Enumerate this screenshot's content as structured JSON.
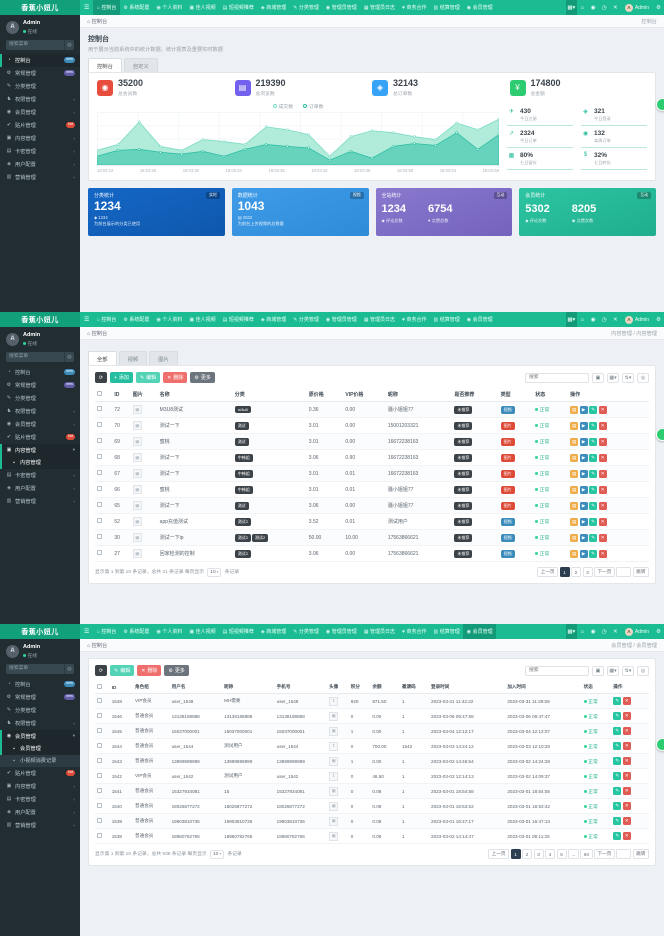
{
  "brand": "香蕉小妞儿",
  "navbar": {
    "items": [
      {
        "glyph": "⌂",
        "icon": "home",
        "label": "控制台"
      },
      {
        "glyph": "⚙",
        "icon": "gear",
        "label": "系统配置"
      },
      {
        "glyph": "◉",
        "icon": "user",
        "label": "个人资料"
      },
      {
        "glyph": "▣",
        "icon": "film",
        "label": "佳人视频"
      },
      {
        "glyph": "▤",
        "icon": "video-list",
        "label": "短视频推荐"
      },
      {
        "glyph": "◈",
        "icon": "mall",
        "label": "商城管理"
      },
      {
        "glyph": "✎",
        "icon": "category",
        "label": "分类管理"
      },
      {
        "glyph": "◉",
        "icon": "admin",
        "label": "管理员管理"
      },
      {
        "glyph": "▦",
        "icon": "log",
        "label": "管理员日志"
      },
      {
        "glyph": "♥",
        "icon": "business",
        "label": "商务合作"
      },
      {
        "glyph": "▥",
        "icon": "settle",
        "label": "结算管理"
      },
      {
        "glyph": "◉",
        "icon": "member",
        "label": "会员管理"
      }
    ],
    "right_icons": [
      {
        "glyph": "▦▾",
        "name": "apps-menu-icon",
        "boxed": true
      },
      {
        "glyph": "⌂",
        "name": "home-icon"
      },
      {
        "glyph": "◉",
        "name": "profile-icon"
      },
      {
        "glyph": "◷",
        "name": "history-icon"
      },
      {
        "glyph": "✕",
        "name": "close-tab-icon"
      }
    ],
    "user": "Admin",
    "settings_glyph": "⚙"
  },
  "sidebar": {
    "user_name": "Admin",
    "user_status": "在线",
    "search_placeholder": "搜索菜单",
    "items": [
      {
        "glyph": "◔",
        "icon": "dashboard",
        "label": "控制台",
        "badge": "new",
        "badge_color": "#3c8dbc"
      },
      {
        "glyph": "⚙",
        "icon": "general",
        "label": "常规管理",
        "badge": "new",
        "badge_color": "#605ca8"
      },
      {
        "glyph": "✎",
        "icon": "category",
        "label": "分类管理"
      },
      {
        "glyph": "♞",
        "icon": "auth",
        "label": "权限管理",
        "arrow": true
      },
      {
        "glyph": "◉",
        "icon": "members",
        "label": "会员管理",
        "arrow": true,
        "children": [
          "会员管理",
          "小视频消费记录"
        ]
      },
      {
        "glyph": "✔",
        "icon": "paster",
        "label": "贴片管理",
        "badge": "hot",
        "badge_color": "#dd4b39"
      },
      {
        "glyph": "▣",
        "icon": "content",
        "label": "内容管理",
        "arrow": true,
        "children": [
          "内容管理"
        ]
      },
      {
        "glyph": "▤",
        "icon": "cardkey",
        "label": "卡密管理",
        "arrow": true
      },
      {
        "glyph": "◈",
        "icon": "userconf",
        "label": "用户配置",
        "arrow": true
      },
      {
        "glyph": "▥",
        "icon": "marketing",
        "label": "营销管理",
        "arrow": true
      }
    ]
  },
  "panels": [
    {
      "key": "dashboard",
      "nav_active": 0,
      "crumb": "控制台",
      "crumb_right": "控制台",
      "sidebar_active": 0,
      "expanded": -1,
      "active_child": -1
    },
    {
      "key": "content",
      "nav_active": -1,
      "crumb": "控制台",
      "crumb_right": "内容管理 / 内容管理",
      "sidebar_active": -1,
      "expanded": 6,
      "active_child": 0
    },
    {
      "key": "members",
      "nav_active": 11,
      "crumb": "控制台",
      "crumb_right": "会员管理 / 会员管理",
      "sidebar_active": -1,
      "expanded": 4,
      "active_child": 0
    }
  ],
  "dashboard": {
    "title": "控制台",
    "subtitle": "用于展示当前系统中的统计数据，统计报表及重要实时数据",
    "tabs": [
      "控制台",
      "自定义"
    ],
    "stats": [
      {
        "value": "35200",
        "label": "总会员数",
        "color": "#e74c3c",
        "glyph": "◉",
        "icon": "users"
      },
      {
        "value": "219390",
        "label": "总浏览数",
        "color": "#7460ee",
        "glyph": "▤",
        "icon": "views"
      },
      {
        "value": "32143",
        "label": "总订单数",
        "color": "#36a3f7",
        "glyph": "◈",
        "icon": "orders"
      },
      {
        "value": "174800",
        "label": "总金额",
        "color": "#2ecc71",
        "glyph": "¥",
        "icon": "money"
      }
    ],
    "minis": [
      {
        "value": "430",
        "label": "今日注册",
        "glyph": "✈",
        "icon": "register"
      },
      {
        "value": "2324",
        "label": "今日订单",
        "glyph": "↗",
        "icon": "orders-today"
      },
      {
        "value": "80%",
        "label": "七日留存",
        "glyph": "▦",
        "icon": "retention"
      },
      {
        "value": "321",
        "label": "今日登录",
        "glyph": "◈",
        "icon": "login-today"
      },
      {
        "value": "132",
        "label": "本周订单",
        "glyph": "◉",
        "icon": "week-orders"
      },
      {
        "value": "32%",
        "label": "七日转化",
        "glyph": "$",
        "icon": "conversion"
      }
    ],
    "cards": [
      {
        "title": "分类统计",
        "badge": "实时",
        "value": "1234",
        "foot_icon": "◆",
        "foot1": "1234",
        "foot2": "为前台展示的分类已使用",
        "bg1": "#1467c6",
        "bg2": "#0f57ad"
      },
      {
        "title": "数据统计",
        "badge": "视频",
        "value": "1043",
        "foot_icon": "▤",
        "foot1": "2532",
        "foot2": "为前台上传视频的总数量",
        "bg1": "#3f9ce8",
        "bg2": "#2e8bd8"
      },
      {
        "title": "全站统计",
        "badge": "互动",
        "pairs": [
          {
            "glyph": "◆",
            "value": "1234",
            "label": "评论总数"
          },
          {
            "glyph": "♥",
            "value": "6754",
            "label": "点赞总数"
          }
        ],
        "bg1": "#8a79ce",
        "bg2": "#7462bd"
      },
      {
        "title": "会员统计",
        "badge": "互动",
        "pairs": [
          {
            "glyph": "◆",
            "value": "5302",
            "label": "评论次数"
          },
          {
            "glyph": "◉",
            "value": "8205",
            "label": "点赞次数"
          }
        ],
        "bg1": "#2dc5a2",
        "bg2": "#1fae8d"
      }
    ]
  },
  "chart_data": {
    "type": "area",
    "title": "",
    "x": [
      "18:03:22",
      "18:03:26",
      "18:03:30",
      "18:03:34",
      "18:03:38",
      "18:03:42",
      "18:03:46",
      "18:03:50",
      "18:03:54",
      "18:03:58"
    ],
    "series": [
      {
        "name": "成交数",
        "color": "#7bdcc4",
        "fill": "#a9e9d6",
        "values": [
          30,
          42,
          88,
          38,
          30,
          52,
          48,
          42,
          78,
          72,
          62,
          18,
          58,
          70,
          66,
          58,
          52,
          86,
          72,
          94
        ]
      },
      {
        "name": "订单数",
        "color": "#2fbfa3",
        "fill": "#5fd0b8",
        "values": [
          18,
          30,
          32,
          26,
          22,
          28,
          18,
          32,
          42,
          38,
          35,
          10,
          28,
          14,
          38,
          44,
          40,
          66,
          32,
          62
        ]
      }
    ],
    "ylim": [
      0,
      100
    ],
    "legend_position": "top",
    "grid": true
  },
  "content_admin": {
    "tabs": [
      "全部",
      "视频",
      "图片"
    ],
    "active_tab": 0,
    "toolbar": [
      {
        "glyph": "⟳",
        "label": "",
        "bg": "#3b4248",
        "name": "refresh-button"
      },
      {
        "glyph": "+",
        "label": "添加",
        "bg": "#23bfa0",
        "name": "add-button"
      },
      {
        "glyph": "✎",
        "label": "编辑",
        "bg": "#52d3b6",
        "name": "edit-button"
      },
      {
        "glyph": "✕",
        "label": "删除",
        "bg": "#ef6f6c",
        "name": "delete-button"
      },
      {
        "glyph": "⚙",
        "label": "更多",
        "bg": "#6c757d",
        "name": "more-button"
      }
    ],
    "search_placeholder": "搜索",
    "tool_icons": [
      {
        "glyph": "▣",
        "name": "recycle-bin-button"
      },
      {
        "glyph": "▦▾",
        "name": "columns-button"
      },
      {
        "glyph": "⇅▾",
        "name": "export-button"
      },
      {
        "glyph": "◎",
        "name": "search-button"
      }
    ],
    "columns": [
      "ID",
      "图片",
      "名称",
      "分类",
      "原价格",
      "VIP价格",
      "昵称",
      "是否推荐",
      "类型",
      "状态",
      "操作"
    ],
    "rows": [
      {
        "id": "72",
        "name": "M3U8测试",
        "cats": [
          "m3u8"
        ],
        "price": "0.36",
        "vip": "0.00",
        "nick": "骚小姐姐77",
        "rec": "未推荐",
        "type": "视频",
        "type_color": "#3c8dbc",
        "status": "正常"
      },
      {
        "id": "70",
        "name": "测试一下",
        "cats": [
          "测试"
        ],
        "price": "3.01",
        "vip": "0.00",
        "nick": "15001203321",
        "rec": "未推荐",
        "type": "图片",
        "type_color": "#dd4b39",
        "status": "正常"
      },
      {
        "id": "69",
        "name": "蜜桃",
        "cats": [
          "测试"
        ],
        "price": "3.01",
        "vip": "0.00",
        "nick": "16672238163",
        "rec": "未推荐",
        "type": "图片",
        "type_color": "#dd4b39",
        "status": "正常"
      },
      {
        "id": "68",
        "name": "测试一下",
        "cats": [
          "中韩组"
        ],
        "price": "3.06",
        "vip": "0.90",
        "nick": "16672238163",
        "rec": "未推荐",
        "type": "图片",
        "type_color": "#dd4b39",
        "status": "正常"
      },
      {
        "id": "67",
        "name": "测试一下",
        "cats": [
          "中韩组"
        ],
        "price": "3.01",
        "vip": "0.01",
        "nick": "16672238163",
        "rec": "未推荐",
        "type": "图片",
        "type_color": "#dd4b39",
        "status": "正常"
      },
      {
        "id": "66",
        "name": "蜜桃",
        "cats": [
          "中韩组"
        ],
        "price": "3.01",
        "vip": "0.01",
        "nick": "骚小姐姐77",
        "rec": "未推荐",
        "type": "图片",
        "type_color": "#dd4b39",
        "status": "正常"
      },
      {
        "id": "65",
        "name": "测试一下",
        "cats": [
          "测试"
        ],
        "price": "3.06",
        "vip": "0.00",
        "nick": "骚小姐姐77",
        "rec": "未推荐",
        "type": "图片",
        "type_color": "#dd4b39",
        "status": "正常"
      },
      {
        "id": "52",
        "name": "app充值测试",
        "cats": [
          "测试2"
        ],
        "price": "3.52",
        "vip": "0.01",
        "nick": "测试用户",
        "rec": "未推荐",
        "type": "视频",
        "type_color": "#3c8dbc",
        "status": "正常"
      },
      {
        "id": "30",
        "name": "测试一下ip",
        "cats": [
          "测试2",
          "测试2"
        ],
        "price": "50.00",
        "vip": "10.00",
        "nick": "17563866621",
        "rec": "未推荐",
        "type": "视频",
        "type_color": "#3c8dbc",
        "status": "正常"
      },
      {
        "id": "27",
        "name": "回家检测的控制",
        "cats": [
          "测试2"
        ],
        "price": "3.06",
        "vip": "0.00",
        "nick": "17563866621",
        "rec": "未推荐",
        "type": "视频",
        "type_color": "#3c8dbc",
        "status": "正常"
      }
    ],
    "actions": [
      {
        "glyph": "▤",
        "color": "#f0ad4e",
        "name": "log-button"
      },
      {
        "glyph": "▶",
        "color": "#3c8dbc",
        "name": "preview-button"
      },
      {
        "glyph": "✎",
        "color": "#26c6a2",
        "name": "edit-row-button"
      },
      {
        "glyph": "✕",
        "color": "#e05b54",
        "name": "delete-row-button"
      }
    ],
    "pagination": {
      "info": "显示第 1 到第 10 条记录，总共 21 条记录 每页显示",
      "page_size": "10",
      "info_tail": "条记录",
      "prev": "上一页",
      "pages": [
        "1",
        "2",
        "3"
      ],
      "active": "1",
      "next": "下一页",
      "jump": "跳转"
    }
  },
  "member_admin": {
    "toolbar": [
      {
        "glyph": "⟳",
        "label": "",
        "bg": "#3b4248",
        "name": "refresh-button"
      },
      {
        "glyph": "✎",
        "label": "编辑",
        "bg": "#52d3b6",
        "name": "edit-button"
      },
      {
        "glyph": "✕",
        "label": "删除",
        "bg": "#ef6f6c",
        "name": "delete-button"
      },
      {
        "glyph": "⚙",
        "label": "更多",
        "bg": "#6c757d",
        "name": "more-button"
      }
    ],
    "search_placeholder": "搜索",
    "tool_icons": [
      {
        "glyph": "▣",
        "name": "recycle-bin-button"
      },
      {
        "glyph": "▦▾",
        "name": "columns-button"
      },
      {
        "glyph": "⇅▾",
        "name": "export-button"
      },
      {
        "glyph": "◎",
        "name": "search-button"
      }
    ],
    "columns": [
      "ID",
      "角色组",
      "用户名",
      "昵称",
      "手机号",
      "头像",
      "积分",
      "余额",
      "邀请码",
      "登录时间",
      "加入时间",
      "状态",
      "操作"
    ],
    "rows": [
      {
        "id": "1548",
        "role": "VIP会员",
        "username": "user_1548",
        "nick": "MH需要",
        "phone": "user_1548",
        "avatar": "up",
        "score": "920",
        "money": "871.50",
        "invite": "1",
        "login": "2023-03-31 11:42:22",
        "join": "2023-03-31 11:39:59",
        "status": "正常"
      },
      {
        "id": "1546",
        "role": "普通会员",
        "username": "13138188888",
        "nick": "13138188888",
        "phone": "13138188888",
        "avatar": "img",
        "score": "0",
        "money": "0.00",
        "invite": "1",
        "login": "2023-03-06 09:47:58",
        "join": "2023-03-06 09:47:47",
        "status": "正常"
      },
      {
        "id": "1545",
        "role": "普通会员",
        "username": "15037000001",
        "nick": "15037000001",
        "phone": "15037000001",
        "avatar": "img",
        "score": "1",
        "money": "0.00",
        "invite": "1",
        "login": "2023-03-04 12:12:17",
        "join": "2023-03-04 12:12:07",
        "status": "正常"
      },
      {
        "id": "1544",
        "role": "普通会员",
        "username": "user_1544",
        "nick": "测试用户",
        "phone": "user_1544",
        "avatar": "up",
        "score": "0",
        "money": "700.00",
        "invite": "1542",
        "login": "2023-03-03 14:24:12",
        "join": "2023-03-03 12:10:28",
        "status": "正常"
      },
      {
        "id": "1543",
        "role": "普通会员",
        "username": "13999999999",
        "nick": "13999999999",
        "phone": "13999999999",
        "avatar": "img",
        "score": "1",
        "money": "0.00",
        "invite": "1",
        "login": "2023-03-02 14:46:54",
        "join": "2023-03-02 14:24:28",
        "status": "正常"
      },
      {
        "id": "1542",
        "role": "VIP会员",
        "username": "user_1542",
        "nick": "测试用户",
        "phone": "user_1542",
        "avatar": "up",
        "score": "0",
        "money": "46.50",
        "invite": "1",
        "login": "2023-03-03 12:14:13",
        "join": "2023-03-02 14:09:37",
        "status": "正常"
      },
      {
        "id": "1541",
        "role": "普通会员",
        "username": "15327934081",
        "nick": "15",
        "phone": "15327934081",
        "avatar": "img",
        "score": "0",
        "money": "0.08",
        "invite": "1",
        "login": "2023-03-01 18:54:58",
        "join": "2023-03-01 18:54:55",
        "status": "正常"
      },
      {
        "id": "1540",
        "role": "普通会员",
        "username": "18026877272",
        "nick": "18026877272",
        "phone": "18026877272",
        "avatar": "img",
        "score": "0",
        "money": "0.08",
        "invite": "1",
        "login": "2023-03-01 18:53:52",
        "join": "2023-03-01 18:53:42",
        "status": "正常"
      },
      {
        "id": "1539",
        "role": "普通会员",
        "username": "19903810736",
        "nick": "19903810736",
        "phone": "19903810736",
        "avatar": "img",
        "score": "0",
        "money": "0.08",
        "invite": "1",
        "login": "2023-03-01 16:47:17",
        "join": "2023-03-01 16:47:13",
        "status": "正常"
      },
      {
        "id": "1538",
        "role": "普通会员",
        "username": "18960782766",
        "nick": "18960782766",
        "phone": "18960782766",
        "avatar": "img",
        "score": "0",
        "money": "0.08",
        "invite": "1",
        "login": "2023-03-02 14:14:47",
        "join": "2023-03-01 09:11:25",
        "status": "正常"
      }
    ],
    "actions": [
      {
        "glyph": "✎",
        "color": "#26c6a2",
        "name": "edit-row-button"
      },
      {
        "glyph": "✕",
        "color": "#e05b54",
        "name": "delete-row-button"
      }
    ],
    "pagination": {
      "info": "显示第 1 到第 10 条记录，总共 938 条记录 每页显示",
      "page_size": "10",
      "info_tail": "条记录",
      "prev": "上一页",
      "pages": [
        "1",
        "2",
        "3",
        "4",
        "5",
        "...",
        "94"
      ],
      "active": "1",
      "next": "下一页",
      "jump": "跳转"
    }
  }
}
